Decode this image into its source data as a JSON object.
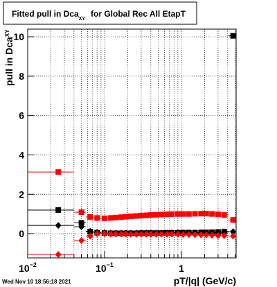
{
  "chart_data": {
    "type": "scatter",
    "title": {
      "text": "Fitted pull in Dca",
      "subscript": "XY",
      "suffix": "for Global Rec All EtapT"
    },
    "x_label": "pT/|q| (GeV/c)",
    "y_label": {
      "text": "pull in Dca",
      "subscript": "XY"
    },
    "timestamp": "Wed Nov 10 18:56:18 2021",
    "log_x": true,
    "grid": true,
    "xlim": [
      0.01,
      5.15
    ],
    "ylim": [
      -1.23,
      10.39
    ],
    "xticks": [
      {
        "value": 0.01,
        "label": "10",
        "exponent": "−2"
      },
      {
        "value": 0.1,
        "label": "10",
        "exponent": "−1"
      },
      1
    ],
    "xminor_ticks": [
      0.02,
      0.03,
      0.04,
      0.05,
      0.06,
      0.07,
      0.08,
      0.09,
      0.2,
      0.3,
      0.4,
      0.5,
      0.6,
      0.7,
      0.8,
      0.9,
      2,
      3,
      4,
      5
    ],
    "yticks": [
      0,
      2,
      4,
      6,
      8,
      10
    ],
    "x": [
      0.025,
      0.05,
      0.065,
      0.08,
      0.1,
      0.12,
      0.14,
      0.165,
      0.19,
      0.22,
      0.26,
      0.3,
      0.35,
      0.4,
      0.47,
      0.55,
      0.65,
      0.75,
      0.9,
      1.05,
      1.25,
      1.5,
      1.8,
      2.1,
      2.5,
      3.0,
      3.6,
      4.7
    ],
    "bin_edges": [
      0.01,
      0.04,
      0.057,
      0.072,
      0.09,
      0.11,
      0.13,
      0.15,
      0.18,
      0.205,
      0.24,
      0.28,
      0.325,
      0.375,
      0.435,
      0.51,
      0.6,
      0.7,
      0.82,
      0.97,
      1.15,
      1.37,
      1.65,
      1.95,
      2.3,
      2.75,
      3.3,
      4.1,
      5.15
    ],
    "series": [
      {
        "color": "#ff0000",
        "marker": "square",
        "values": [
          3.13,
          1.09,
          0.85,
          0.8,
          0.78,
          0.8,
          0.82,
          0.84,
          0.86,
          0.88,
          0.9,
          0.92,
          0.93,
          0.95,
          0.96,
          0.97,
          0.98,
          0.99,
          1.0,
          1.0,
          1.0,
          1.01,
          1.02,
          1.02,
          1.0,
          0.98,
          0.95,
          0.7
        ]
      },
      {
        "color": "#000000",
        "marker": "square",
        "values": [
          1.2,
          0.55,
          0.1,
          0.05,
          0.03,
          0.02,
          0.02,
          0.02,
          0.02,
          0.02,
          0.02,
          0.03,
          0.03,
          0.03,
          0.03,
          0.03,
          0.04,
          0.04,
          0.04,
          0.05,
          0.05,
          0.05,
          0.06,
          0.06,
          0.07,
          0.08,
          0.1,
          10.05
        ]
      },
      {
        "color": "#000000",
        "marker": "diamond",
        "values": [
          0.42,
          0.35,
          0.12,
          0.06,
          0.04,
          0.03,
          0.03,
          0.03,
          0.03,
          0.03,
          0.03,
          0.03,
          0.03,
          0.03,
          0.03,
          0.03,
          0.03,
          0.04,
          0.04,
          0.04,
          0.04,
          0.04,
          0.04,
          0.05,
          0.05,
          0.06,
          0.08,
          0.1
        ]
      },
      {
        "color": "#ff0000",
        "marker": "diamond",
        "values": [
          -1.06,
          -0.35,
          -0.12,
          0.0,
          0.0,
          -0.02,
          -0.02,
          -0.02,
          -0.02,
          -0.03,
          -0.03,
          -0.03,
          -0.03,
          -0.03,
          -0.03,
          -0.03,
          -0.03,
          -0.03,
          -0.03,
          -0.04,
          -0.04,
          -0.05,
          -0.06,
          -0.06,
          -0.08,
          -0.1,
          -0.1,
          -0.12
        ]
      }
    ]
  }
}
